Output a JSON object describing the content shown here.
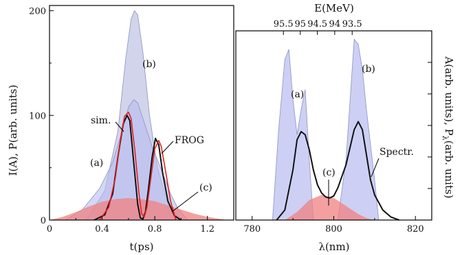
{
  "chart_data": [
    {
      "type": "area",
      "xlabel": "t(ps)",
      "ylabel": "I(A), P(arb. units)",
      "xlim": [
        0,
        1.4
      ],
      "ylim": [
        0,
        205
      ],
      "xticks": [
        0,
        0.4,
        0.8,
        1.2
      ],
      "xtick_labels": [
        "0",
        "0.4",
        "0.8",
        "1.2"
      ],
      "yticks": [
        0,
        100,
        200
      ],
      "ytick_labels": [
        "0",
        "100",
        "200"
      ],
      "series": [
        {
          "id": "b",
          "color": "#b4b8e0",
          "x": [
            0.28,
            0.42,
            0.52,
            0.58,
            0.62,
            0.645,
            0.67,
            0.71,
            0.76,
            0.82,
            0.9,
            1.0
          ],
          "y": [
            0,
            28,
            85,
            155,
            192,
            200,
            196,
            160,
            100,
            50,
            15,
            0
          ]
        },
        {
          "id": "a",
          "color": "#b8bcf0",
          "x": [
            0.12,
            0.25,
            0.38,
            0.48,
            0.56,
            0.6,
            0.64,
            0.67,
            0.72,
            0.78,
            0.85,
            0.92,
            0.98,
            1.05
          ],
          "y": [
            0,
            10,
            30,
            55,
            88,
            108,
            115,
            112,
            93,
            70,
            48,
            25,
            10,
            0
          ]
        },
        {
          "id": "c",
          "color": "#f08080",
          "x": [
            0.0,
            0.1,
            0.2,
            0.3,
            0.4,
            0.5,
            0.6,
            0.7,
            0.8,
            0.9,
            1.0,
            1.1,
            1.2,
            1.3,
            1.35
          ],
          "y": [
            0,
            3,
            7.5,
            13,
            17.5,
            20,
            21,
            20,
            18,
            14,
            10,
            6,
            3,
            1,
            0
          ]
        },
        {
          "id": "sim",
          "color": "#111111",
          "x": [
            0.34,
            0.42,
            0.48,
            0.52,
            0.56,
            0.59,
            0.61,
            0.64,
            0.67,
            0.69,
            0.71,
            0.73,
            0.75,
            0.78,
            0.805,
            0.83,
            0.86,
            0.9,
            0.95,
            1.0
          ],
          "y": [
            0,
            5,
            25,
            60,
            92,
            100,
            95,
            55,
            15,
            2,
            1,
            8,
            28,
            60,
            78,
            72,
            45,
            18,
            4,
            0
          ]
        },
        {
          "id": "frog",
          "color": "#e02020",
          "x": [
            0.38,
            0.45,
            0.5,
            0.54,
            0.57,
            0.6,
            0.62,
            0.65,
            0.68,
            0.7,
            0.72,
            0.74,
            0.77,
            0.8,
            0.83,
            0.85,
            0.88,
            0.92,
            0.96
          ],
          "y": [
            0,
            12,
            40,
            78,
            99,
            103,
            97,
            65,
            25,
            6,
            3,
            12,
            40,
            68,
            76,
            70,
            48,
            18,
            0
          ]
        }
      ],
      "annotations": [
        "(b)",
        "(a)",
        "sim.",
        "FROG",
        "(c)"
      ]
    },
    {
      "type": "area",
      "xlabel": "λ(nm)",
      "x2label": "E(MeV)",
      "ylabel_right": "A(arb. units), P",
      "ylabel_right_sub": "λ",
      "ylabel_right_end": "(arb. units)",
      "xlim": [
        776,
        824
      ],
      "xticks": [
        780,
        800,
        820
      ],
      "xtick_labels": [
        "780",
        "800",
        "820"
      ],
      "x2ticks": [
        95.5,
        95,
        94.5,
        94,
        93.5
      ],
      "x2tick_labels": [
        "95.5",
        "95",
        "94.5",
        "94",
        "93.5"
      ],
      "series": [
        {
          "id": "a",
          "color": "#b8bcf0",
          "x": [
            785,
            786.5,
            788,
            789,
            790,
            791,
            792,
            793,
            794,
            795
          ],
          "y": [
            0,
            90,
            160,
            170,
            120,
            85,
            110,
            130,
            60,
            0
          ]
        },
        {
          "id": "b",
          "color": "#b8bcf0",
          "x": [
            801,
            803,
            804,
            805,
            806,
            807,
            808,
            809,
            810,
            811
          ],
          "y": [
            0,
            60,
            120,
            180,
            175,
            150,
            110,
            75,
            40,
            0
          ]
        },
        {
          "id": "c",
          "color": "#f08080",
          "x": [
            788,
            791,
            794,
            797,
            800,
            803,
            806,
            808,
            810
          ],
          "y": [
            0,
            8,
            20,
            25,
            22,
            14,
            6,
            2,
            0
          ]
        },
        {
          "id": "spectr",
          "color": "#111111",
          "x": [
            786,
            788,
            790,
            791,
            792,
            793,
            794,
            795,
            796,
            797,
            798,
            799,
            800,
            801,
            803,
            805,
            806,
            807,
            808,
            809,
            810,
            812,
            814,
            816
          ],
          "y": [
            0,
            10,
            50,
            80,
            88,
            85,
            70,
            50,
            35,
            27,
            23,
            22,
            24,
            32,
            55,
            90,
            98,
            90,
            65,
            40,
            25,
            10,
            3,
            0
          ]
        }
      ],
      "annotations": [
        "(a)",
        "(b)",
        "(c)",
        "Spectr."
      ]
    }
  ]
}
